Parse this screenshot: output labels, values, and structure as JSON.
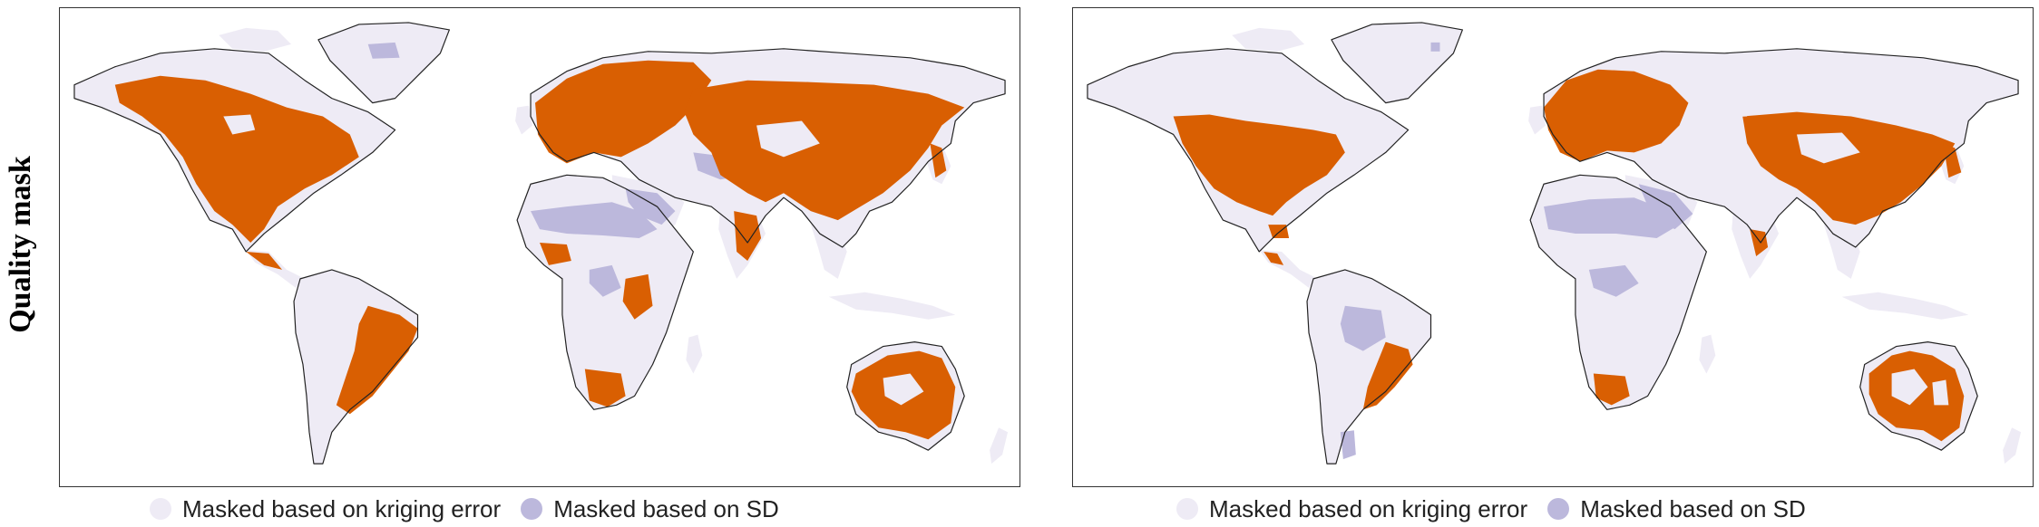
{
  "row_label": "Quality mask",
  "colors": {
    "ocean": "#ffffff",
    "masked_kriging": "#eeebf5",
    "masked_sd": "#bcb8dc",
    "unmasked": "#d95f02",
    "coastline": "#222222"
  },
  "panels": [
    {
      "name": "left",
      "legend": [
        {
          "label": "Masked based on kriging error",
          "color": "#eeebf5"
        },
        {
          "label": "Masked based on SD",
          "color": "#bcb8dc"
        }
      ]
    },
    {
      "name": "right",
      "legend": [
        {
          "label": "Masked based on kriging error",
          "color": "#eeebf5"
        },
        {
          "label": "Masked based on SD",
          "color": "#bcb8dc"
        }
      ]
    }
  ]
}
